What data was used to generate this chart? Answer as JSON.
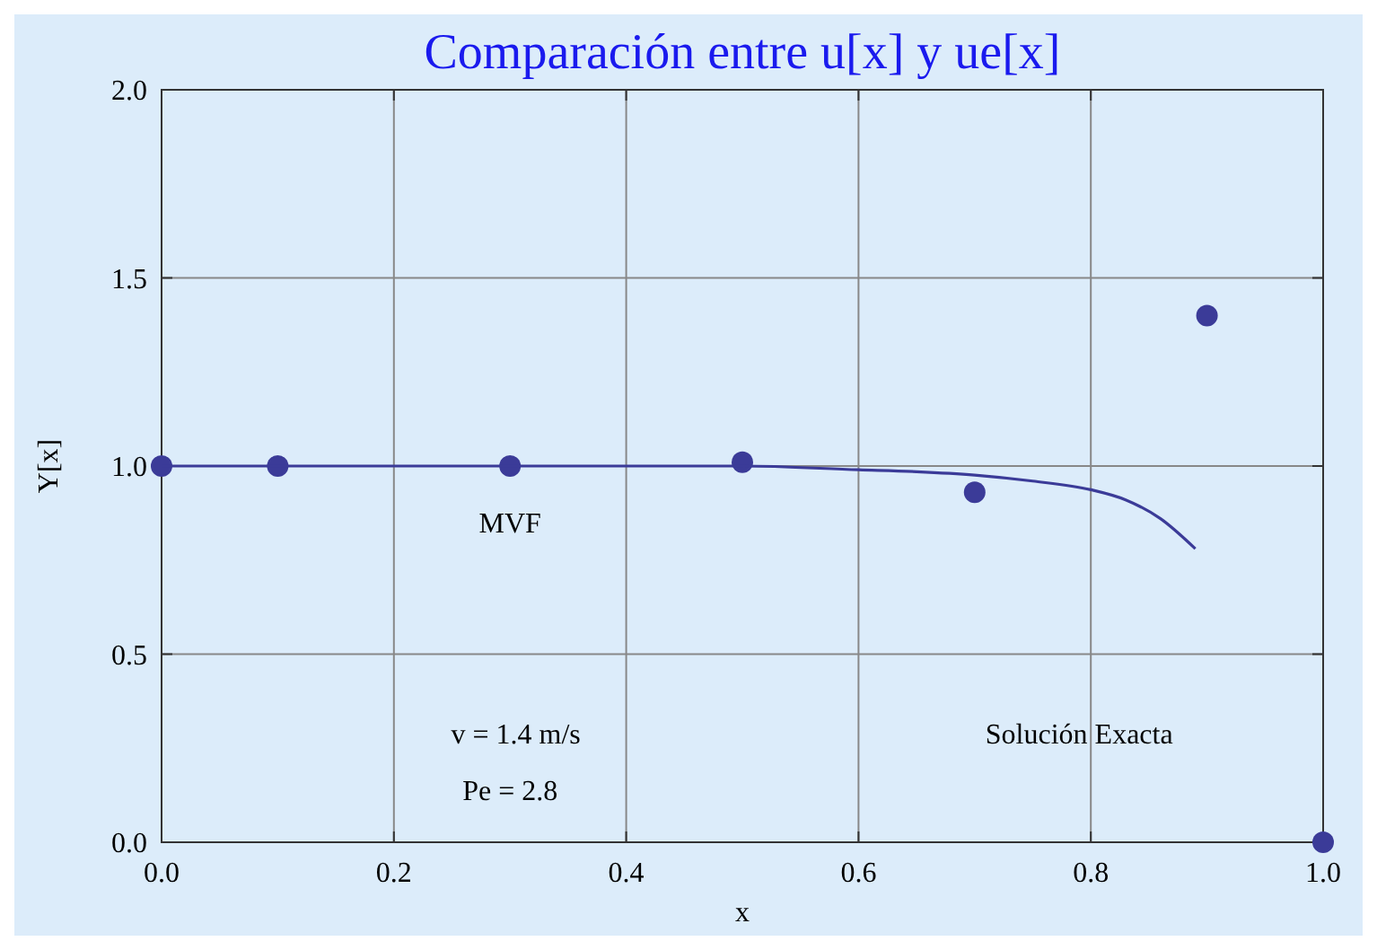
{
  "chart_data": {
    "type": "scatter",
    "title": "Comparación entre u[x] y ue[x]",
    "xlabel": "x",
    "ylabel": "Y[x]",
    "series": [
      {
        "name": "MVF",
        "marker": "circle",
        "color": "#3b3b98",
        "x": [
          0,
          0.1,
          0.3,
          0.5,
          0.7,
          0.9,
          1.0
        ],
        "values": [
          1,
          1,
          1,
          1.01,
          0.93,
          1.4,
          0.0
        ]
      },
      {
        "type": "line",
        "marker": "none",
        "color": "#3b3b98",
        "x": [
          0,
          0.2,
          0.4,
          0.5,
          0.6,
          0.65,
          0.7,
          0.75,
          0.8,
          0.83,
          0.86,
          0.89
        ],
        "values": [
          1,
          1,
          1,
          1,
          0.99,
          0.985,
          0.976,
          0.96,
          0.937,
          0.91,
          0.86,
          0.78
        ]
      }
    ],
    "xlim": [
      0,
      1
    ],
    "ylim": [
      0,
      2
    ],
    "xticks": [
      {
        "value": 0,
        "label": "0.0"
      },
      0.2,
      0.4,
      0.6,
      0.8,
      {
        "value": 1,
        "label": "1.0"
      }
    ],
    "yticks": [
      {
        "value": 0,
        "label": "0.0"
      },
      0.5,
      {
        "value": 1,
        "label": "1.0"
      },
      1.5,
      {
        "value": 2,
        "label": "2.0"
      }
    ],
    "grid": true,
    "line_style": "solid",
    "annotations": [
      "v = 1.4 m/s",
      "Pe = 2.8",
      "Solución Exacta"
    ]
  }
}
